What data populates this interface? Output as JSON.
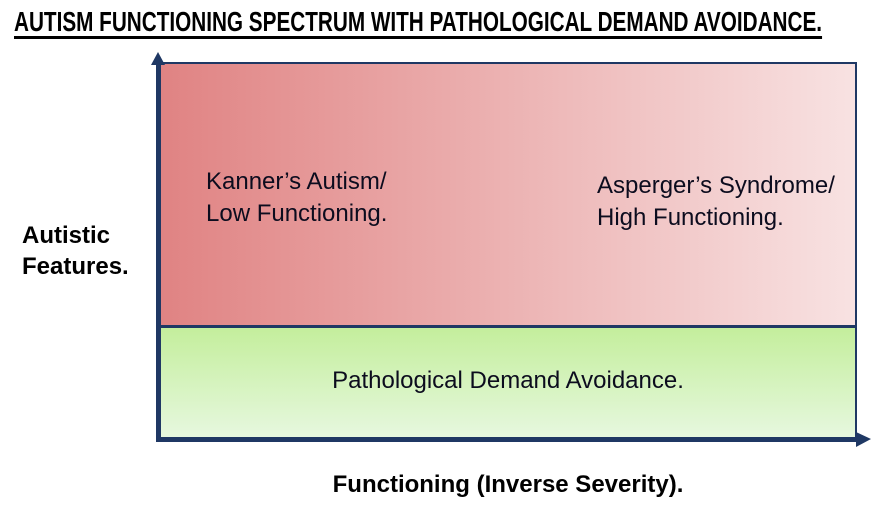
{
  "title": "AUTISM FUNCTIONING SPECTRUM WITH PATHOLOGICAL DEMAND AVOIDANCE.",
  "y_axis": {
    "label_line1": "Autistic",
    "label_line2": "Features."
  },
  "x_axis": {
    "label": "Functioning (Inverse Severity)."
  },
  "regions": {
    "upper": {
      "left_annotation": {
        "line1": "Kanner’s Autism/",
        "line2": "Low Functioning."
      },
      "right_annotation": {
        "line1": "Asperger’s Syndrome/",
        "line2": "High Functioning."
      }
    },
    "lower": {
      "label": "Pathological Demand Avoidance."
    }
  },
  "colors": {
    "axis": "#1f3864",
    "title_text": "#000000",
    "label_text": "#0c0c1e",
    "upper_gradient_start": "#e08383",
    "upper_gradient_end": "#f8e2e2",
    "lower_gradient_start": "#c4ee9c",
    "lower_gradient_end": "#e7f8e0"
  }
}
